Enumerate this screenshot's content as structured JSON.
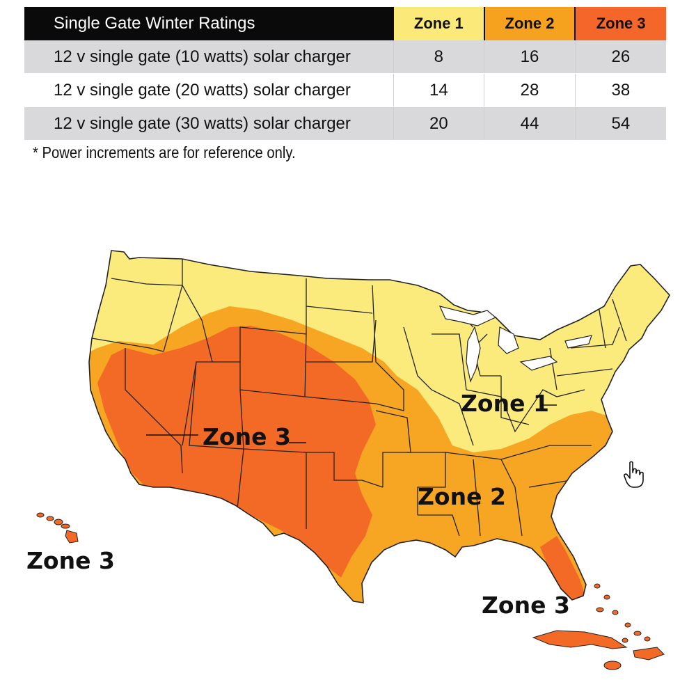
{
  "table": {
    "title": "Single Gate Winter Ratings",
    "zone_headers": [
      "Zone 1",
      "Zone 2",
      "Zone 3"
    ],
    "zone_colors": [
      "#fbe97a",
      "#f7a21f",
      "#f4662a"
    ],
    "rows": [
      {
        "label": "12 v single gate (10 watts) solar charger",
        "values": [
          "8",
          "16",
          "26"
        ]
      },
      {
        "label": "12 v single gate (20 watts) solar charger",
        "values": [
          "14",
          "28",
          "38"
        ]
      },
      {
        "label": "12 v single gate (30 watts) solar charger",
        "values": [
          "20",
          "44",
          "54"
        ]
      }
    ]
  },
  "footnote": "* Power increments are for reference only.",
  "map": {
    "fill_colors": {
      "zone1": "#fbeb7d",
      "zone2": "#f7a624",
      "zone3": "#f26a26"
    },
    "labels": {
      "mainland_zone1": "Zone 1",
      "mainland_zone3": "Zone 3",
      "mainland_zone2": "Zone 2",
      "hawaii_zone3": "Zone 3",
      "caribbean_zone3": "Zone 3"
    }
  },
  "cursor": {
    "icon": "hand-pointer-icon"
  }
}
